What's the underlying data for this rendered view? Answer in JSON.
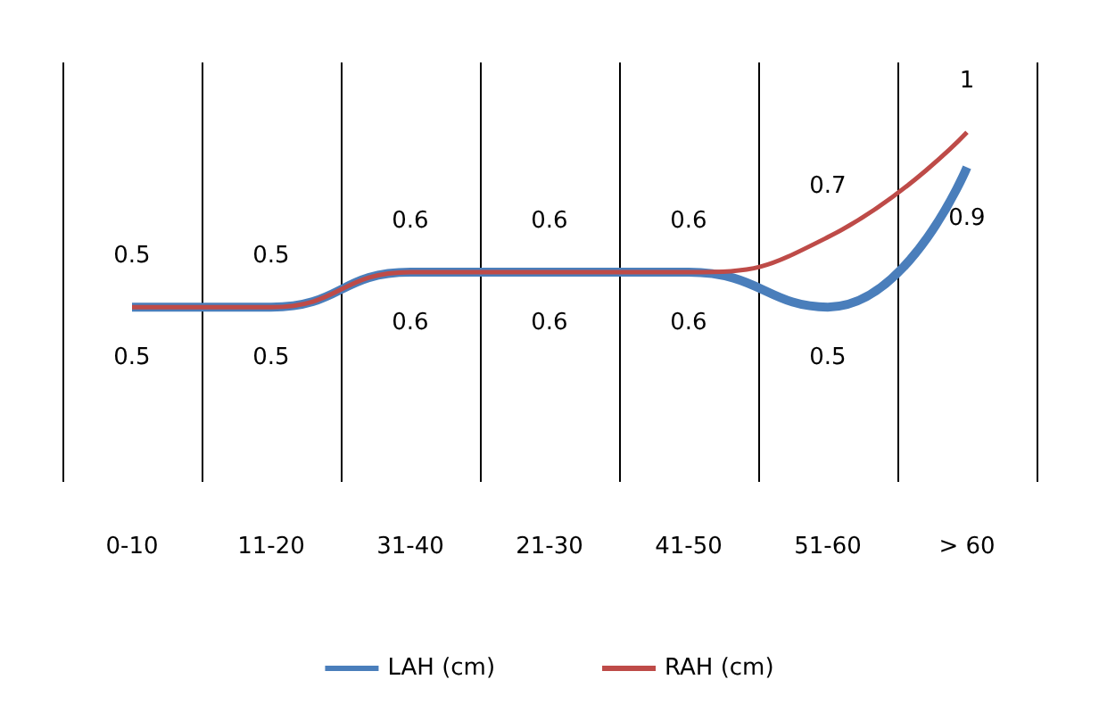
{
  "chart_data": {
    "type": "line",
    "categories": [
      "0-10",
      "11-20",
      "31-40",
      "21-30",
      "41-50",
      "51-60",
      "> 60"
    ],
    "series": [
      {
        "name": "LAH (cm)",
        "color": "#4a7ebb",
        "values": [
          0.5,
          0.5,
          0.6,
          0.6,
          0.6,
          0.5,
          0.9
        ]
      },
      {
        "name": "RAH (cm)",
        "color": "#be4b48",
        "values": [
          0.5,
          0.5,
          0.6,
          0.6,
          0.6,
          0.7,
          1
        ]
      }
    ],
    "ylim": [
      0,
      1.2
    ],
    "tick_labels": "x",
    "grid": "x",
    "legend": "bottom",
    "data_labels": true,
    "marker": "none",
    "line_style": "solid"
  }
}
